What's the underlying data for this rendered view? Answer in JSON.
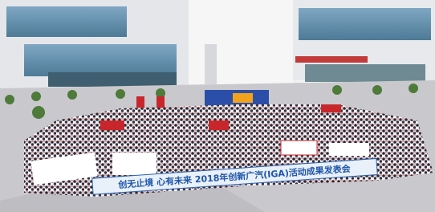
{
  "banner": {
    "text": "创无止境 心有未来 2018年创新广汽(IGA)活动成果发表会"
  }
}
